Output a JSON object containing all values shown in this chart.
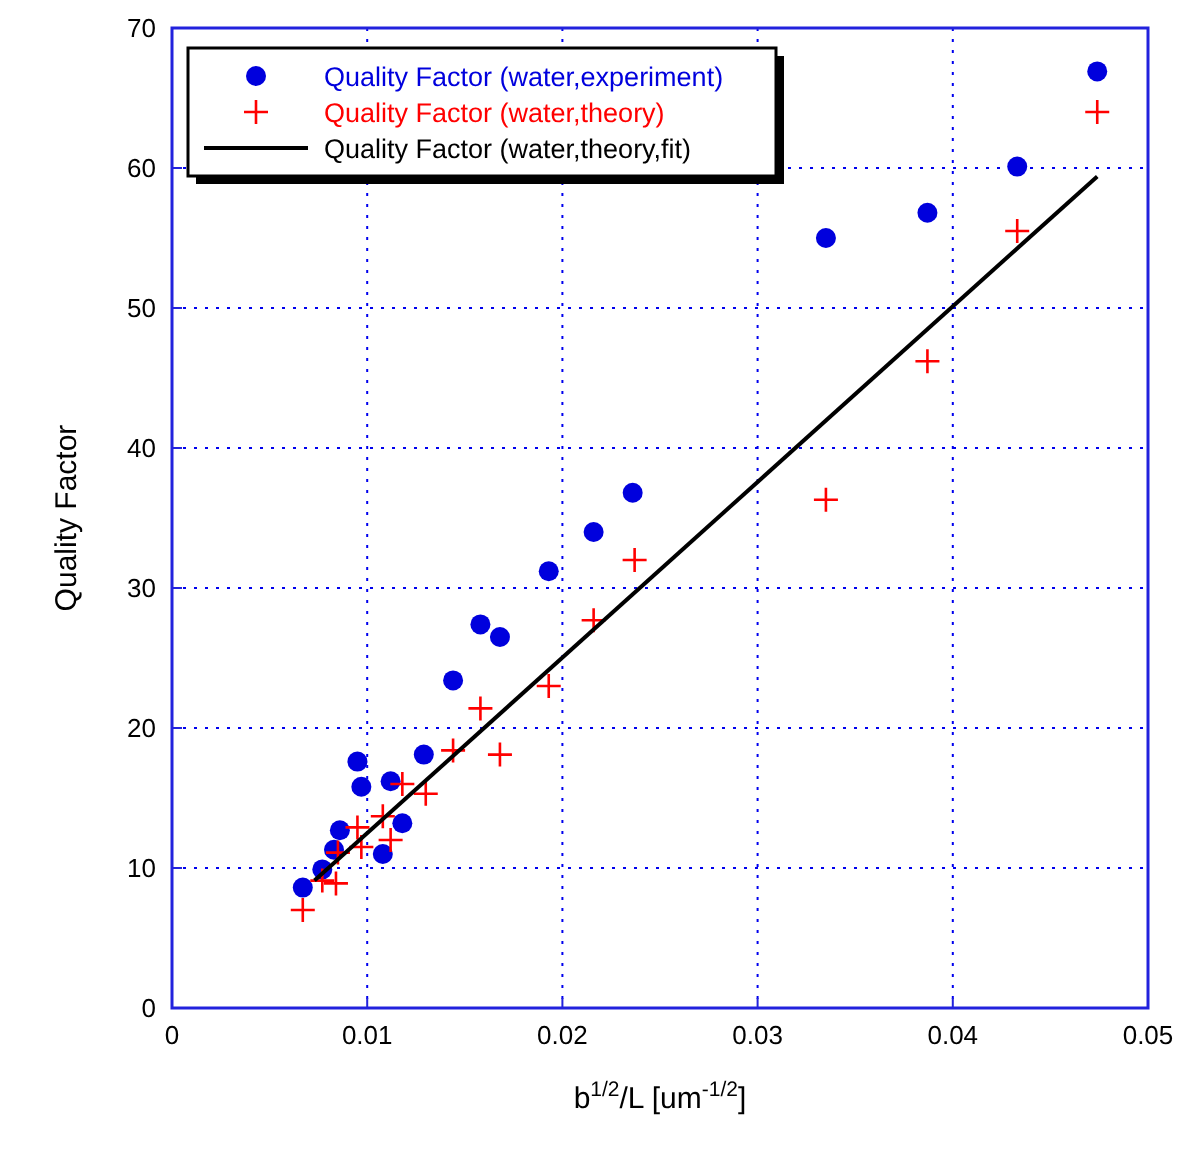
{
  "chart_data": {
    "type": "scatter",
    "xlabel": "b$^{1/2}$/L [um$^{-1/2}$]",
    "ylabel": "Quality Factor",
    "xlim": [
      0,
      0.05
    ],
    "xticks": [
      0,
      0.01,
      0.02,
      0.03,
      0.04,
      0.05
    ],
    "ylim": [
      0,
      70
    ],
    "yticks": [
      0,
      10,
      20,
      30,
      40,
      50,
      60,
      70
    ],
    "grid": true,
    "legend": "top left",
    "series": [
      {
        "name": "Quality Factor (water,experiment)",
        "color": "#0000dd",
        "marker": "circle",
        "x": [
          0.0067,
          0.0077,
          0.0083,
          0.0086,
          0.0095,
          0.0097,
          0.0108,
          0.0112,
          0.0118,
          0.0129,
          0.0144,
          0.0158,
          0.0168,
          0.0193,
          0.0216,
          0.0236,
          0.0335,
          0.0387,
          0.0433,
          0.0474
        ],
        "values": [
          8.6,
          9.9,
          11.3,
          12.7,
          17.6,
          15.8,
          11.0,
          16.2,
          13.2,
          18.1,
          23.4,
          27.4,
          26.5,
          31.2,
          34.0,
          36.8,
          55.0,
          56.8,
          60.1,
          66.9
        ]
      },
      {
        "name": "Quality Factor (water,theory)",
        "color": "#ff0000",
        "marker": "cross",
        "x": [
          0.0067,
          0.0077,
          0.0084,
          0.0085,
          0.0095,
          0.0097,
          0.0108,
          0.0112,
          0.0118,
          0.013,
          0.0144,
          0.0158,
          0.0168,
          0.0193,
          0.0216,
          0.0237,
          0.0335,
          0.0387,
          0.0433,
          0.0474
        ],
        "values": [
          7.0,
          9.1,
          8.9,
          11.1,
          12.9,
          11.5,
          13.7,
          12.0,
          16.0,
          15.3,
          18.4,
          21.4,
          18.1,
          23.0,
          27.7,
          32.0,
          36.3,
          46.2,
          55.5,
          64.0
        ]
      },
      {
        "name": "Quality Factor (water,theory,fit)",
        "type": "line",
        "color": "#000000",
        "marker": "none",
        "line_style": "solid",
        "x": [
          0.0073,
          0.0474
        ],
        "values": [
          9.1,
          59.4
        ]
      }
    ]
  }
}
